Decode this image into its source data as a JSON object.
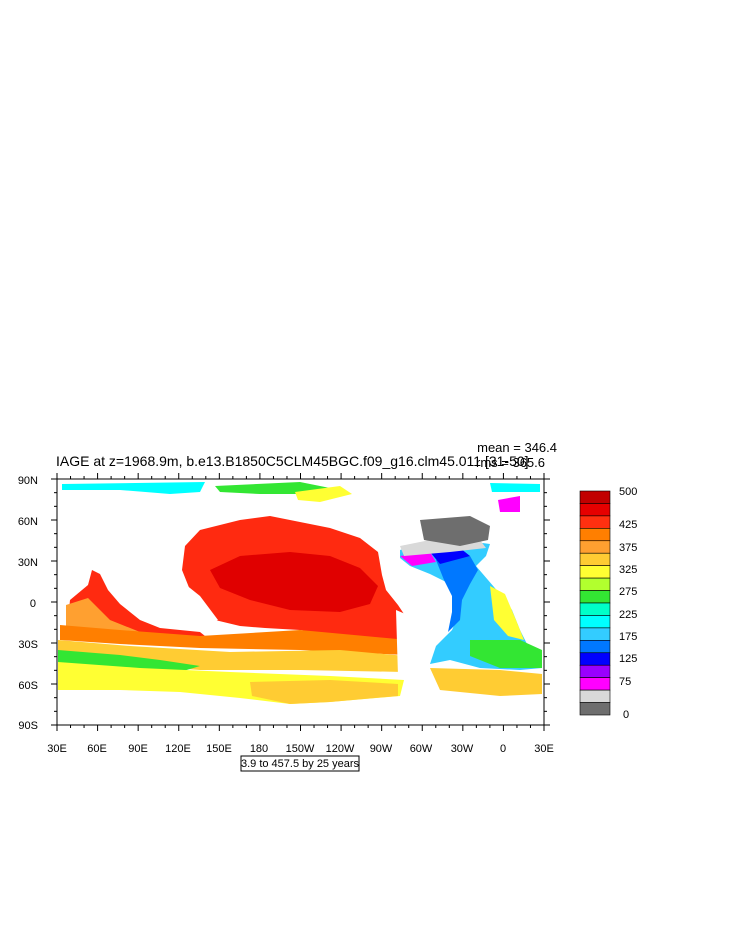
{
  "figure": {
    "title": "IAGE at z=1968.9m, b.e13.B1850C5CLM45BGC.f09_g16.clm45.011 [31-50]",
    "mean_label": "mean = 346.4",
    "rms_label": "rms = 365.6",
    "contour_info": "3.9 to 457.5 by 25 years"
  },
  "axes": {
    "lat_ticks": [
      "90N",
      "60N",
      "30N",
      "0",
      "30S",
      "60S",
      "90S"
    ],
    "lon_ticks": [
      "30E",
      "60E",
      "90E",
      "120E",
      "150E",
      "180",
      "150W",
      "120W",
      "90W",
      "60W",
      "30W",
      "0",
      "30E"
    ]
  },
  "colorbar": {
    "labels": [
      "500",
      "425",
      "375",
      "325",
      "275",
      "225",
      "175",
      "125",
      "75",
      "0"
    ],
    "colors": [
      "#c10000",
      "#e60000",
      "#ff3010",
      "#ff7f00",
      "#ffa030",
      "#ffcc33",
      "#ffff33",
      "#b2ff2e",
      "#33e633",
      "#00ffc8",
      "#00ffff",
      "#33ccff",
      "#0078ff",
      "#0000ff",
      "#9900ff",
      "#ff00ff",
      "#d9d9d9",
      "#6e6e6e"
    ]
  },
  "colors": {
    "frame": "#000000",
    "land": "#ffffff",
    "deep_pacific": "#e00000",
    "pacific": "#ff2a10",
    "southern_ocean": "#ffcc33",
    "atlantic_deep": "#33ccff"
  }
}
